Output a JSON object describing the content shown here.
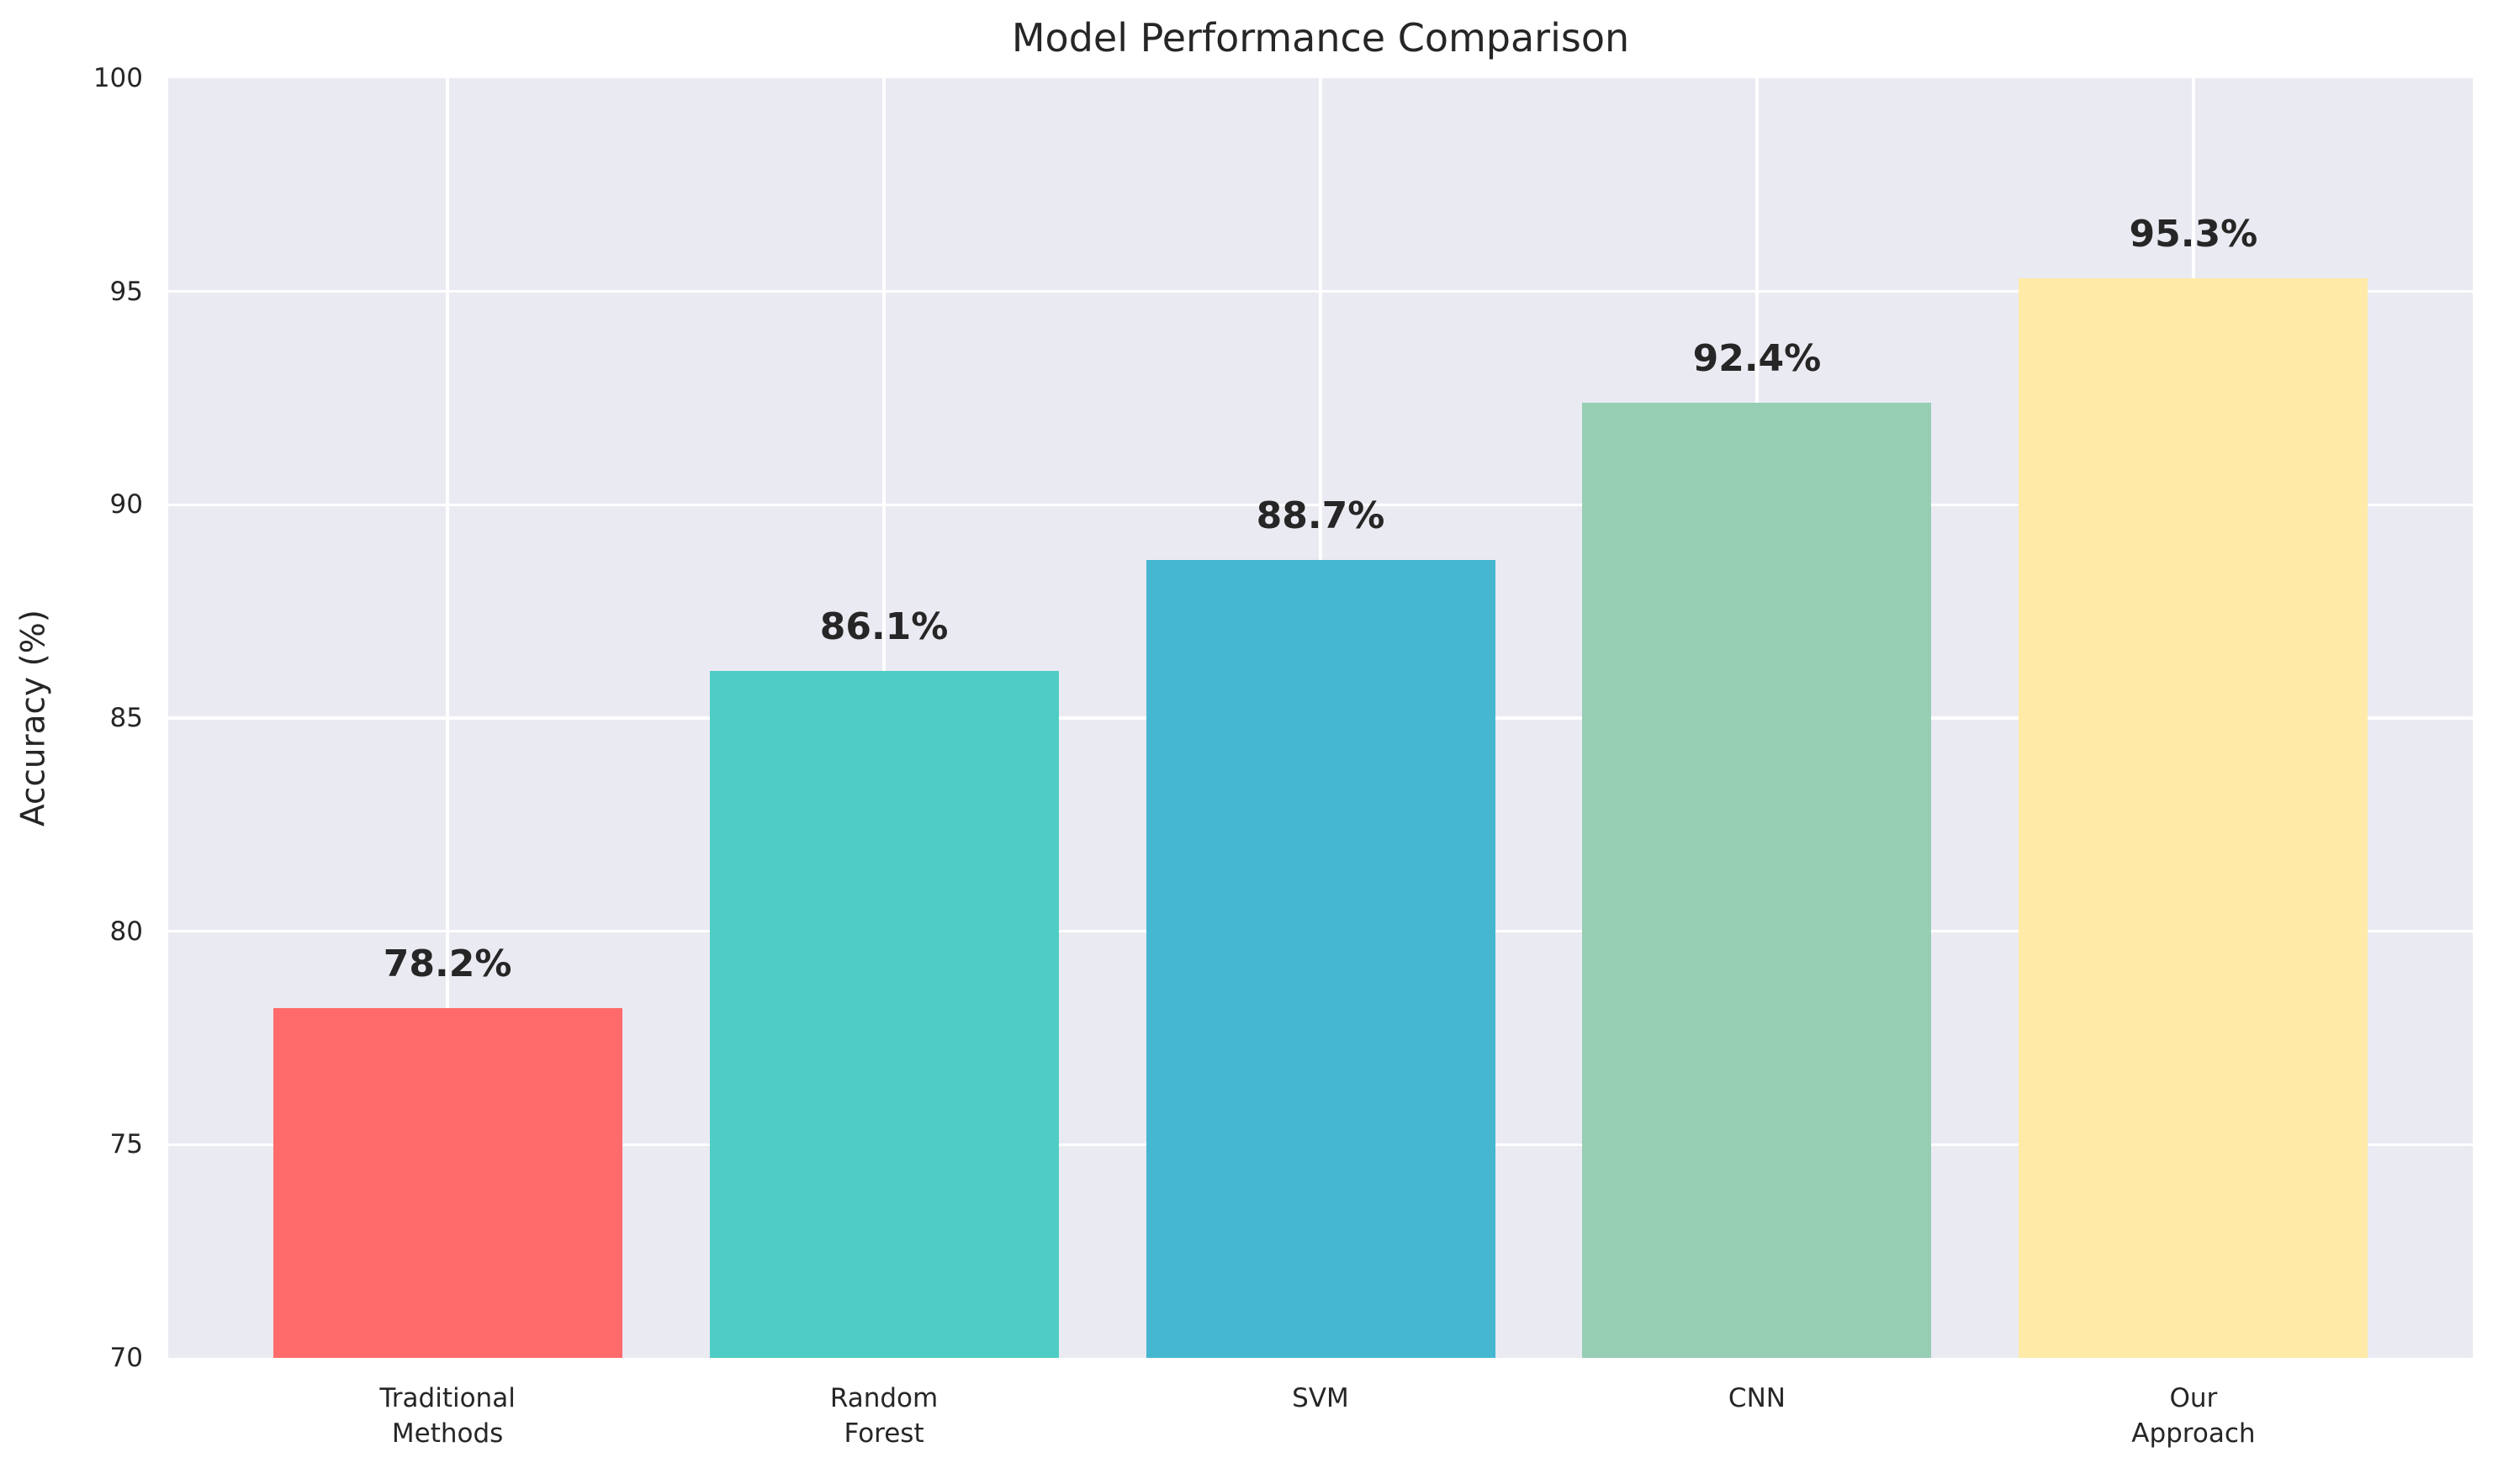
{
  "chart_data": {
    "type": "bar",
    "title": "Model Performance Comparison",
    "xlabel": "",
    "ylabel": "Accuracy (%)",
    "categories": [
      "Traditional Methods",
      "Random Forest",
      "SVM",
      "CNN",
      "Our Approach"
    ],
    "category_lines": [
      [
        "Traditional",
        "Methods"
      ],
      [
        "Random",
        "Forest"
      ],
      [
        "SVM"
      ],
      [
        "CNN"
      ],
      [
        "Our",
        "Approach"
      ]
    ],
    "values": [
      78.2,
      86.1,
      88.7,
      92.4,
      95.3
    ],
    "bar_labels": [
      "78.2%",
      "86.1%",
      "88.7%",
      "92.4%",
      "95.3%"
    ],
    "bar_colors": [
      "#FF6B6B",
      "#4ECDC4",
      "#45B7D1",
      "#96CEB4",
      "#FFEAA7"
    ],
    "ylim": [
      70,
      100
    ],
    "yticks": [
      70,
      75,
      80,
      85,
      90,
      95,
      100
    ],
    "grid": true,
    "legend": "none",
    "plot_background": "#EAEAF2",
    "grid_color": "#FFFFFF",
    "text_color": "#262626"
  }
}
